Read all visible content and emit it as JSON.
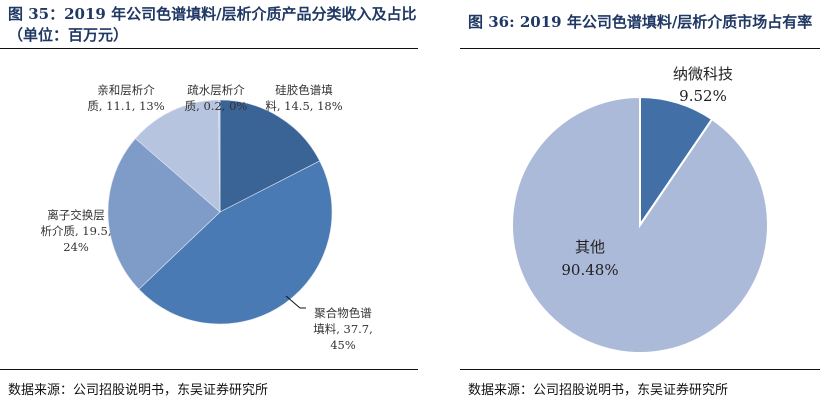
{
  "left": {
    "title_line1": "图 35：2019 年公司色谱填料/层析介质产品分类收入及占比",
    "title_line2": "（单位：百万元）",
    "source": "数据来源：公司招股说明书，东吴证券研究所",
    "labels": [
      {
        "l1": "硅胶色谱填",
        "l2": "料, 14.5, 18%"
      },
      {
        "l1": "聚合物色谱",
        "l2": "填料, 37.7,",
        "l3": "45%"
      },
      {
        "l1": "离子交换层",
        "l2": "析介质, 19.5,",
        "l3": "24%"
      },
      {
        "l1": "亲和层析介",
        "l2": "质, 11.1, 13%"
      },
      {
        "l1": "疏水层析介",
        "l2": "质, 0.2, 0%"
      }
    ]
  },
  "right": {
    "title": "图 36: 2019 年公司色谱填料/层析介质市场占有率",
    "source": "数据来源：公司招股说明书，东吴证券研究所",
    "labels": [
      {
        "l1": "纳微科技",
        "l2": "9.52%"
      },
      {
        "l1": "其他",
        "l2": "90.48%"
      }
    ]
  },
  "chart_data": [
    {
      "type": "pie",
      "title": "2019年公司色谱填料/层析介质产品分类收入及占比（单位：百万元）",
      "categories": [
        "硅胶色谱填料",
        "聚合物色谱填料",
        "离子交换层析介质",
        "亲和层析介质",
        "疏水层析介质"
      ],
      "values": [
        14.5,
        37.7,
        19.5,
        11.1,
        0.2
      ],
      "percentages": [
        18,
        45,
        24,
        13,
        0
      ],
      "colors": [
        "#3b6496",
        "#4a7ab3",
        "#7f9cc8",
        "#b6c4e0",
        "#c9d3ea"
      ],
      "unit": "百万元",
      "start_angle": "12 o'clock, clockwise"
    },
    {
      "type": "pie",
      "title": "2019年公司色谱填料/层析介质市场占有率",
      "categories": [
        "纳微科技",
        "其他"
      ],
      "values": [
        9.52,
        90.48
      ],
      "colors": [
        "#4270a6",
        "#abbad8"
      ],
      "unit": "%",
      "start_angle": "12 o'clock, clockwise"
    }
  ]
}
